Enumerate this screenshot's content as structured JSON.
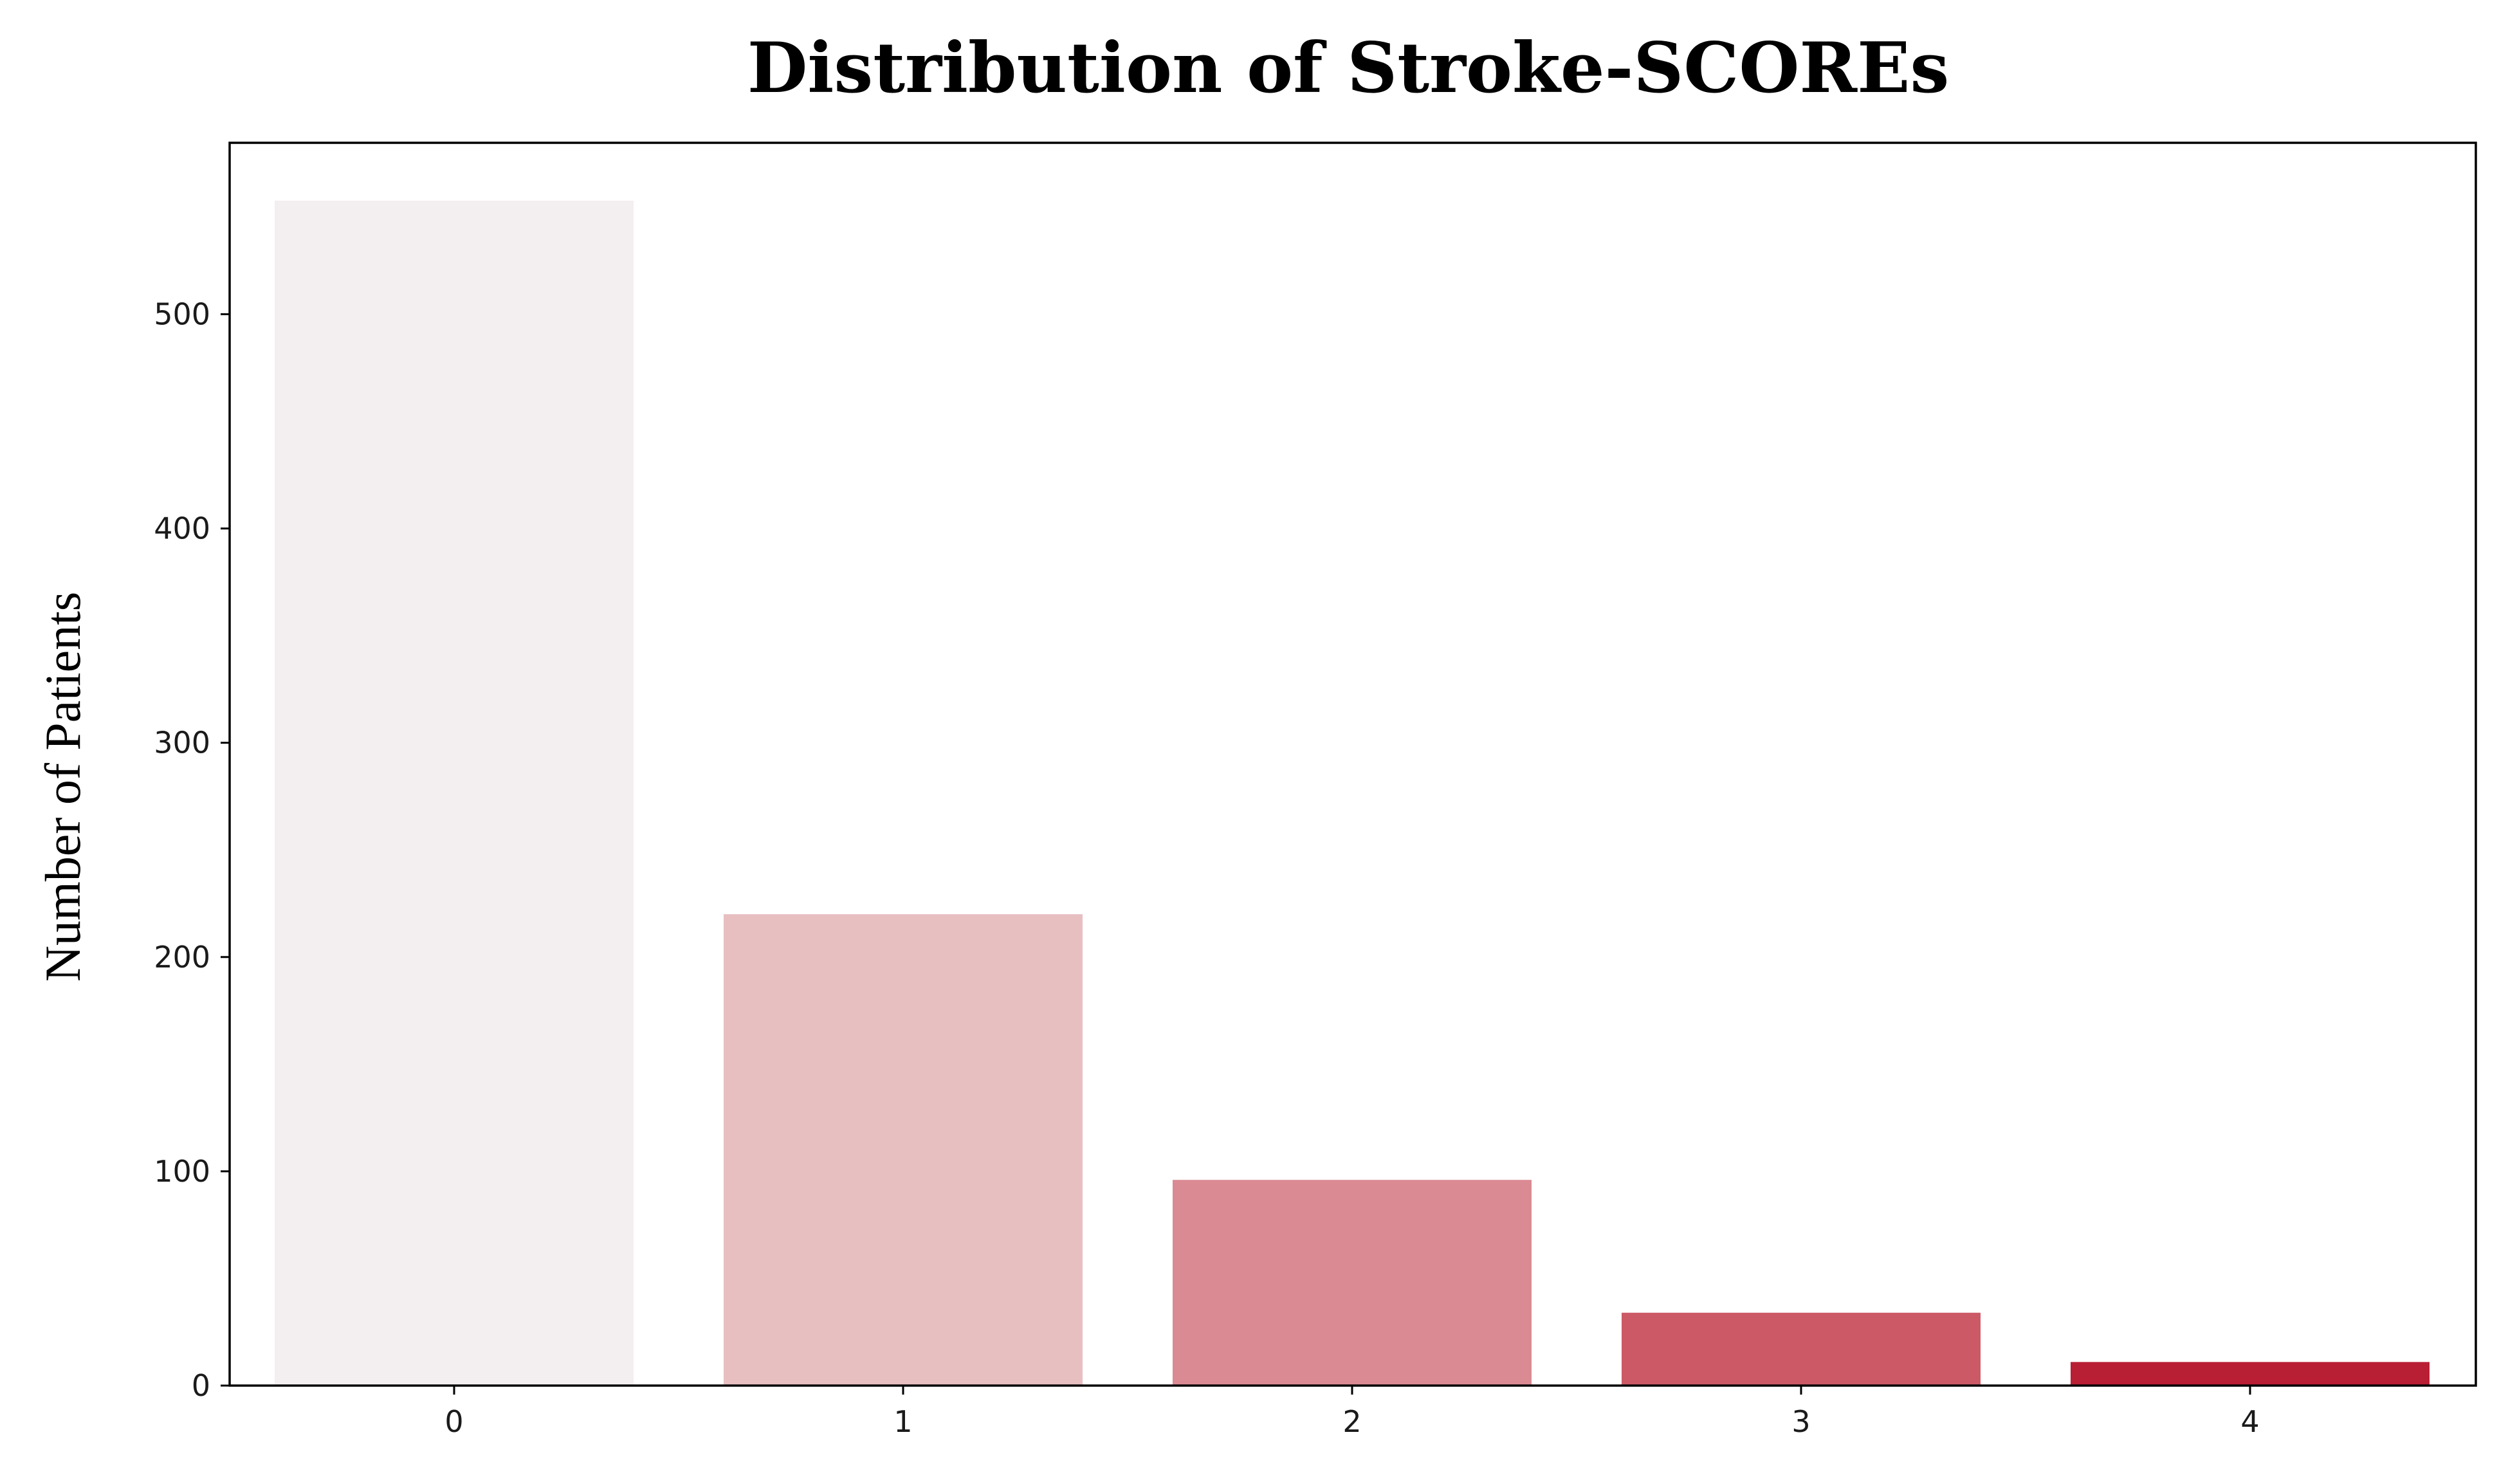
{
  "chart_data": {
    "type": "bar",
    "title": "Distribution of Stroke-SCOREs",
    "xlabel": "",
    "ylabel": "Number of Patients",
    "categories": [
      "0",
      "1",
      "2",
      "3",
      "4"
    ],
    "values": [
      553,
      220,
      96,
      34,
      11
    ],
    "bar_colors": [
      "#f3eeef",
      "#e7bfc1",
      "#da8a93",
      "#cc5a66",
      "#b81e34"
    ],
    "ylim": [
      0,
      580
    ],
    "yticks": [
      0,
      100,
      200,
      300,
      400,
      500
    ],
    "grid": false,
    "legend": "none"
  }
}
